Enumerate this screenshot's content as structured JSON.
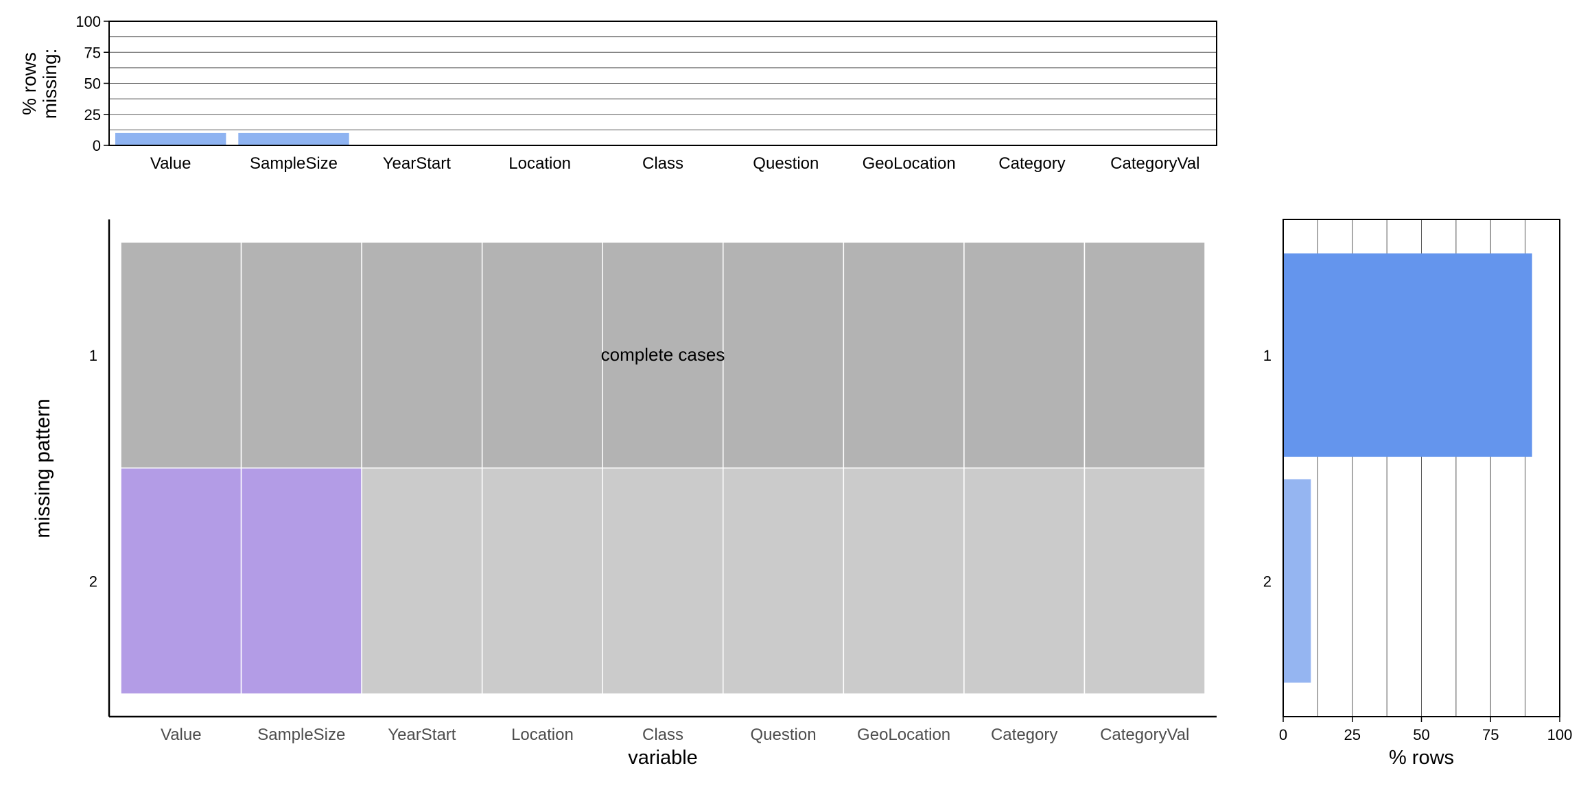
{
  "colors": {
    "top_bar": "#8eb3f1",
    "complete": "#b3b3b3",
    "present": "#cbcbcb",
    "missing": "#b39ce6",
    "right_bar_complete": "#6495ed",
    "right_bar_missing": "#95b5f1",
    "axis": "#000000",
    "grid": "#555555",
    "divider": "#ffffff",
    "tick_label": "#4d4d4d"
  },
  "chart_data": [
    {
      "type": "bar",
      "name": "top-missing-bar",
      "ylabel_lines": [
        "% rows",
        "missing:"
      ],
      "ylim": [
        0,
        100
      ],
      "yticks": [
        0,
        25,
        50,
        75,
        100
      ],
      "grid": true,
      "categories": [
        "Value",
        "SampleSize",
        "YearStart",
        "Location",
        "Class",
        "Question",
        "GeoLocation",
        "Category",
        "CategoryVal"
      ],
      "values": [
        10,
        10,
        0,
        0,
        0,
        0,
        0,
        0,
        0
      ]
    },
    {
      "type": "heatmap",
      "name": "missing-pattern-tile",
      "xlabel": "variable",
      "ylabel": "missing pattern",
      "xcategories": [
        "Value",
        "SampleSize",
        "YearStart",
        "Location",
        "Class",
        "Question",
        "GeoLocation",
        "Category",
        "CategoryVal"
      ],
      "patterns": [
        {
          "label": "1",
          "missing": [
            false,
            false,
            false,
            false,
            false,
            false,
            false,
            false,
            false
          ],
          "complete": true
        },
        {
          "label": "2",
          "missing": [
            true,
            true,
            false,
            false,
            false,
            false,
            false,
            false,
            false
          ],
          "complete": false
        }
      ],
      "annotation": "complete cases"
    },
    {
      "type": "bar",
      "name": "right-pattern-bar",
      "orientation": "horizontal",
      "xlabel": "% rows",
      "xlim": [
        0,
        100
      ],
      "xticks": [
        0,
        25,
        50,
        75,
        100
      ],
      "grid": true,
      "categories": [
        "1",
        "2"
      ],
      "values": [
        90,
        10
      ]
    }
  ]
}
